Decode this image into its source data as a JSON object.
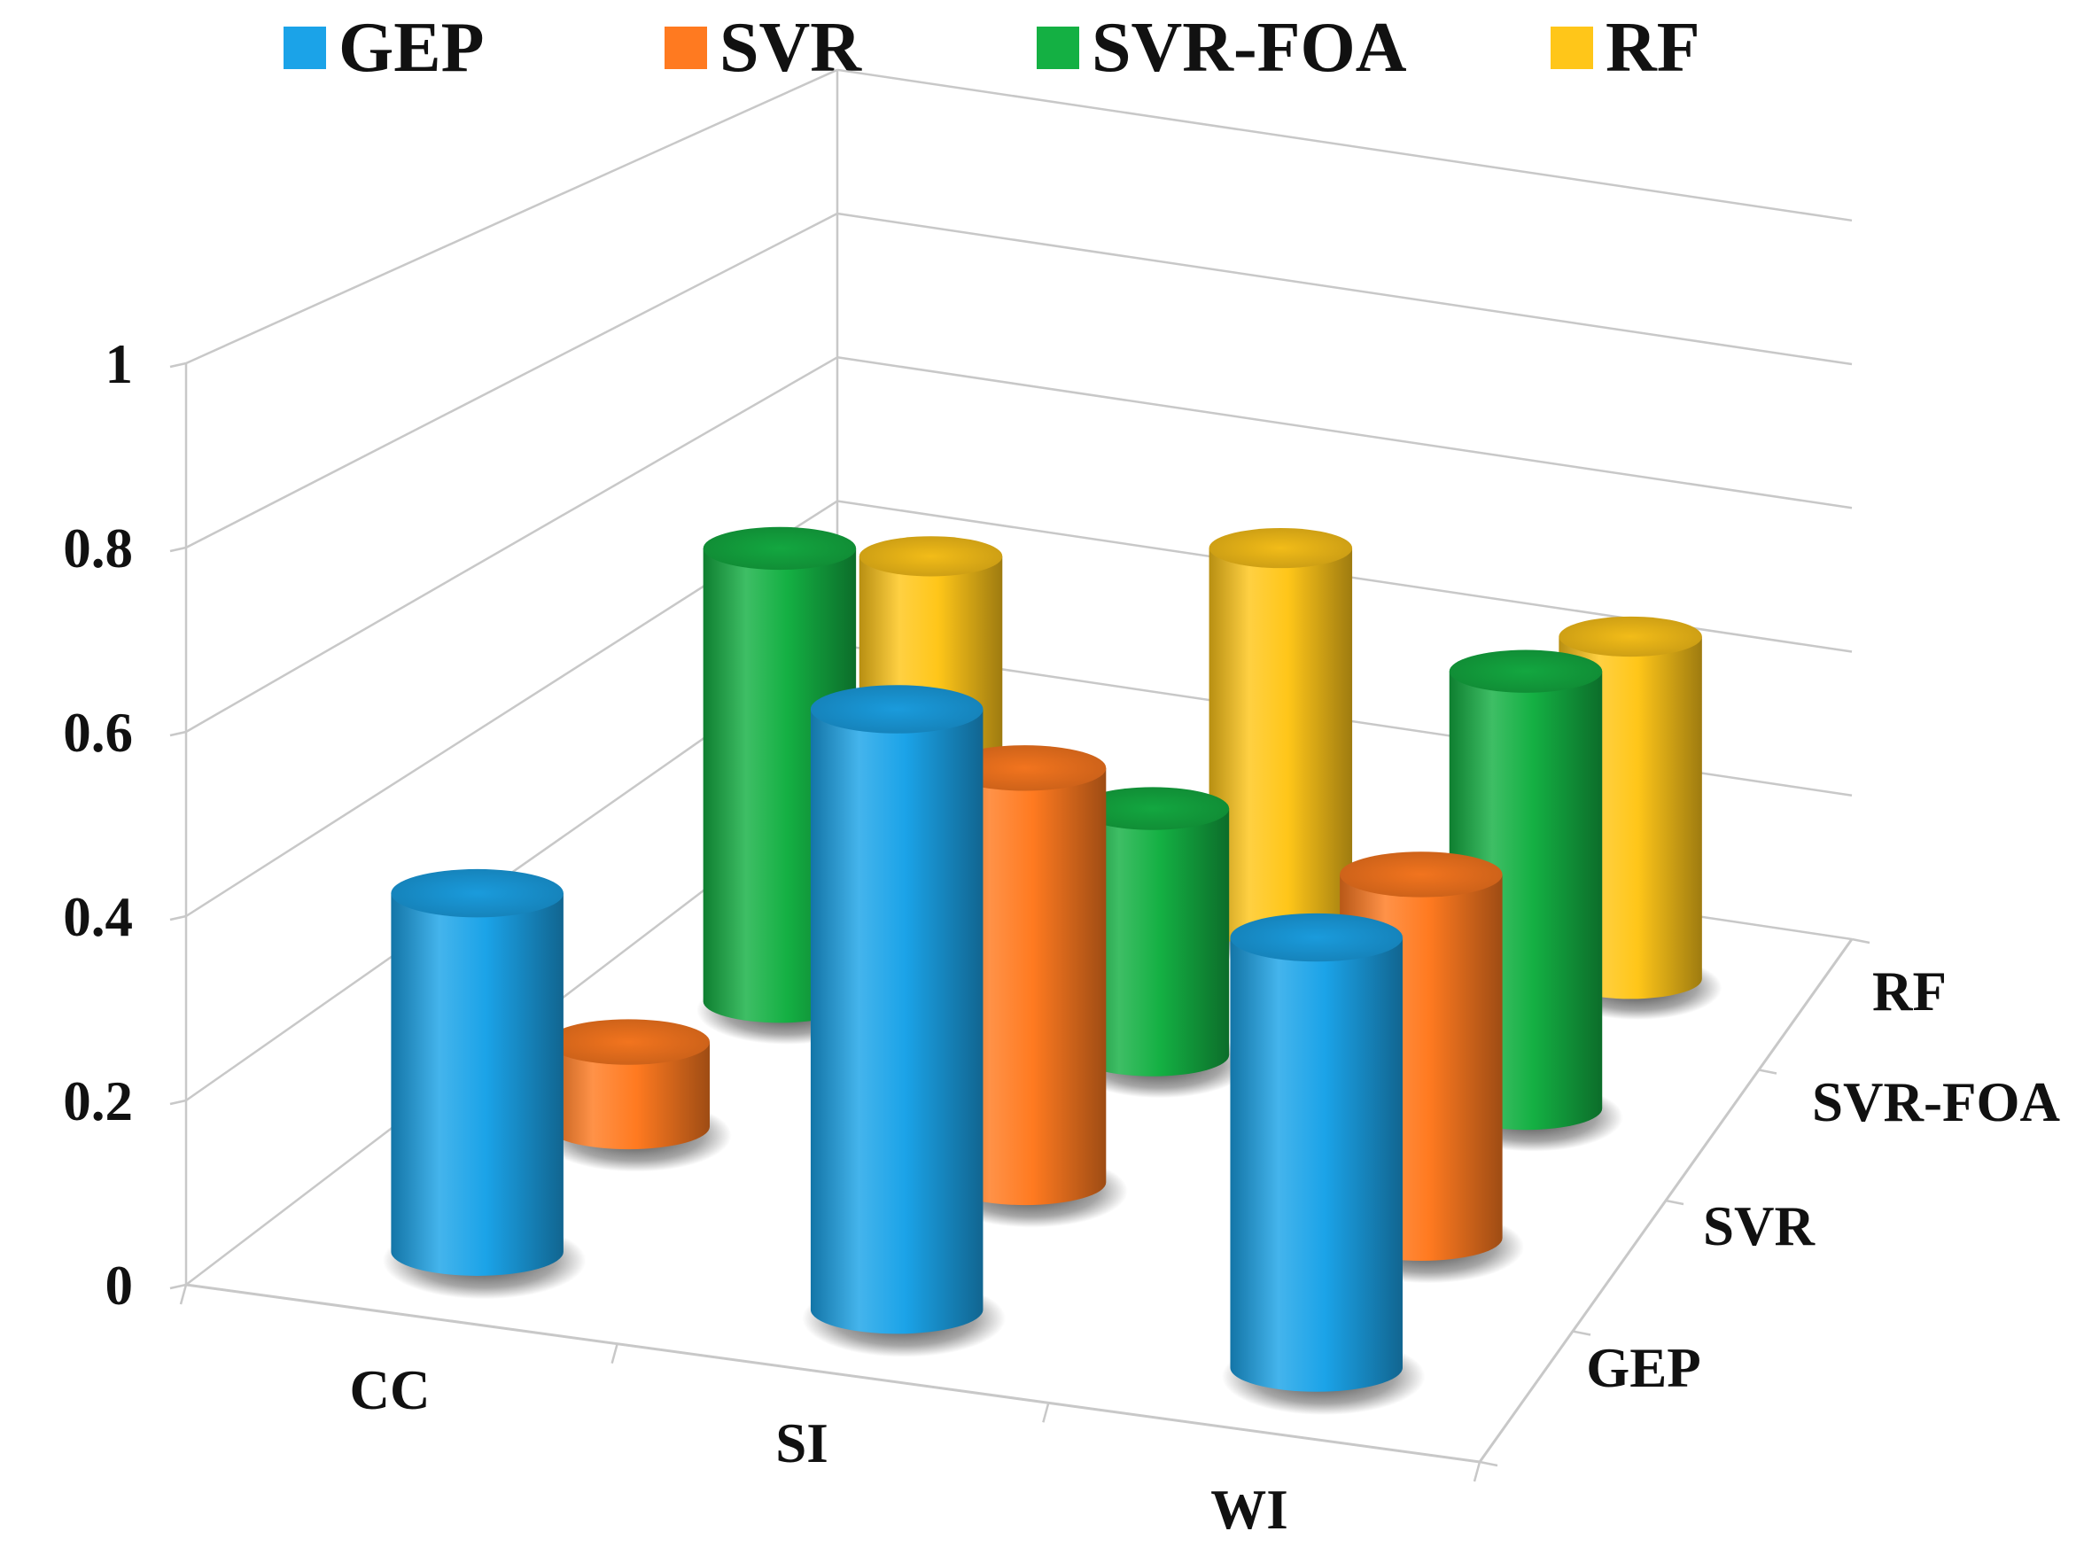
{
  "chart_data": {
    "type": "bar",
    "style": "3d-cylinder",
    "title": "",
    "xlabel": "",
    "ylabel": "",
    "ylim": [
      0,
      1
    ],
    "y_ticks": [
      "0",
      "0.2",
      "0.4",
      "0.6",
      "0.8",
      "1"
    ],
    "categories": [
      "CC",
      "SI",
      "WI"
    ],
    "depth_labels": [
      "GEP",
      "SVR",
      "SVR-FOA",
      "RF"
    ],
    "series": [
      {
        "name": "GEP",
        "color": "#1ba3e8",
        "values": [
          0.4,
          0.67,
          0.48
        ]
      },
      {
        "name": "SVR",
        "color": "#ff7a20",
        "values": [
          0.1,
          0.49,
          0.43
        ]
      },
      {
        "name": "SVR-FOA",
        "color": "#14b043",
        "values": [
          0.57,
          0.31,
          0.55
        ]
      },
      {
        "name": "RF",
        "color": "#ffc619",
        "values": [
          0.43,
          0.51,
          0.46
        ]
      }
    ],
    "legend_position": "top",
    "grid": true
  }
}
